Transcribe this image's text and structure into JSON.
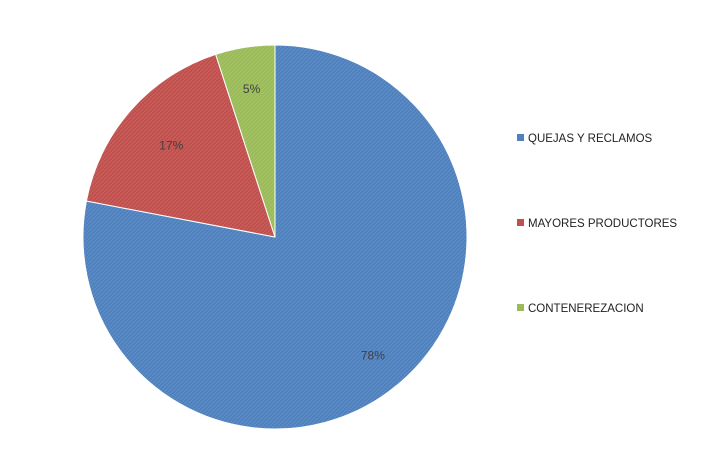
{
  "chart_data": {
    "type": "pie",
    "title": "",
    "slices": [
      {
        "label": "QUEJAS Y RECLAMOS",
        "value": 78,
        "value_label": "78%",
        "color": "#4F81BD"
      },
      {
        "label": "MAYORES PRODUCTORES",
        "value": 17,
        "value_label": "17%",
        "color": "#C0504D"
      },
      {
        "label": "CONTENEREZACION",
        "value": 5,
        "value_label": "5%",
        "color": "#9BBB59"
      }
    ],
    "start_angle_deg": 0,
    "direction": "clockwise",
    "legend": "right",
    "data_labels": "inside"
  }
}
